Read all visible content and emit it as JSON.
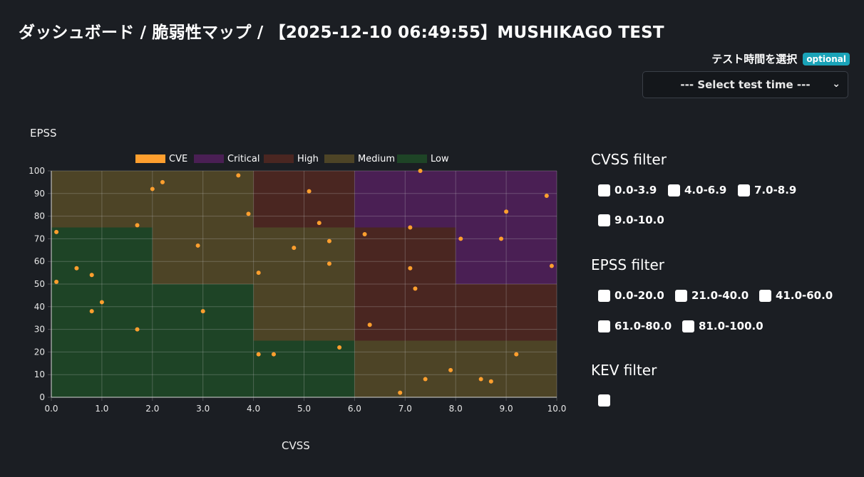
{
  "page": {
    "title": "ダッシュボード / 脆弱性マップ / 【2025-12-10 06:49:55】MUSHIKAGO TEST"
  },
  "test_time": {
    "label": "テスト時間を選択",
    "badge": "optional",
    "select_value": "--- Select test time ---"
  },
  "chart_data": {
    "type": "scatter",
    "ylabel": "EPSS",
    "xlabel": "CVSS",
    "xlim": [
      0,
      10
    ],
    "ylim": [
      0,
      100
    ],
    "x_ticks": [
      "0.0",
      "1.0",
      "2.0",
      "3.0",
      "4.0",
      "5.0",
      "6.0",
      "7.0",
      "8.0",
      "9.0",
      "10.0"
    ],
    "y_ticks": [
      "0",
      "10",
      "20",
      "30",
      "40",
      "50",
      "60",
      "70",
      "80",
      "90",
      "100"
    ],
    "legend": [
      {
        "name": "CVE",
        "color": "#ff9f2e"
      },
      {
        "name": "Critical",
        "color": "#4a1f54"
      },
      {
        "name": "High",
        "color": "#4a2621"
      },
      {
        "name": "Medium",
        "color": "#4d4426"
      },
      {
        "name": "Low",
        "color": "#1e4426"
      }
    ],
    "regions": [
      {
        "level": "Low",
        "x0": 0,
        "x1": 2,
        "y0": 0,
        "y1": 75,
        "color": "#1e4426"
      },
      {
        "level": "Low",
        "x0": 2,
        "x1": 4,
        "y0": 0,
        "y1": 50,
        "color": "#1e4426"
      },
      {
        "level": "Low",
        "x0": 4,
        "x1": 6,
        "y0": 0,
        "y1": 25,
        "color": "#1e4426"
      },
      {
        "level": "Medium",
        "x0": 0,
        "x1": 2,
        "y0": 75,
        "y1": 100,
        "color": "#4d4426"
      },
      {
        "level": "Medium",
        "x0": 2,
        "x1": 4,
        "y0": 50,
        "y1": 100,
        "color": "#4d4426"
      },
      {
        "level": "Medium",
        "x0": 4,
        "x1": 6,
        "y0": 25,
        "y1": 75,
        "color": "#4d4426"
      },
      {
        "level": "Medium",
        "x0": 6,
        "x1": 10,
        "y0": 0,
        "y1": 25,
        "color": "#4d4426"
      },
      {
        "level": "High",
        "x0": 4,
        "x1": 6,
        "y0": 75,
        "y1": 100,
        "color": "#4a2621"
      },
      {
        "level": "High",
        "x0": 6,
        "x1": 8,
        "y0": 25,
        "y1": 75,
        "color": "#4a2621"
      },
      {
        "level": "High",
        "x0": 8,
        "x1": 10,
        "y0": 25,
        "y1": 50,
        "color": "#4a2621"
      },
      {
        "level": "Critical",
        "x0": 6,
        "x1": 10,
        "y0": 75,
        "y1": 100,
        "color": "#4a1f54"
      },
      {
        "level": "Critical",
        "x0": 8,
        "x1": 10,
        "y0": 50,
        "y1": 75,
        "color": "#4a1f54"
      }
    ],
    "points": [
      {
        "x": 0.1,
        "y": 73
      },
      {
        "x": 0.1,
        "y": 51
      },
      {
        "x": 0.5,
        "y": 57
      },
      {
        "x": 0.8,
        "y": 54
      },
      {
        "x": 0.8,
        "y": 38
      },
      {
        "x": 1.0,
        "y": 42
      },
      {
        "x": 1.7,
        "y": 76
      },
      {
        "x": 1.7,
        "y": 30
      },
      {
        "x": 2.0,
        "y": 92
      },
      {
        "x": 2.2,
        "y": 95
      },
      {
        "x": 2.9,
        "y": 67
      },
      {
        "x": 3.0,
        "y": 38
      },
      {
        "x": 3.7,
        "y": 98
      },
      {
        "x": 3.9,
        "y": 81
      },
      {
        "x": 4.1,
        "y": 55
      },
      {
        "x": 4.1,
        "y": 19
      },
      {
        "x": 4.4,
        "y": 19
      },
      {
        "x": 4.8,
        "y": 66
      },
      {
        "x": 5.1,
        "y": 91
      },
      {
        "x": 5.3,
        "y": 77
      },
      {
        "x": 5.5,
        "y": 69
      },
      {
        "x": 5.5,
        "y": 59
      },
      {
        "x": 5.7,
        "y": 22
      },
      {
        "x": 6.2,
        "y": 72
      },
      {
        "x": 6.3,
        "y": 32
      },
      {
        "x": 6.9,
        "y": 2
      },
      {
        "x": 7.1,
        "y": 75
      },
      {
        "x": 7.1,
        "y": 57
      },
      {
        "x": 7.2,
        "y": 48
      },
      {
        "x": 7.3,
        "y": 100
      },
      {
        "x": 7.4,
        "y": 8
      },
      {
        "x": 7.9,
        "y": 12
      },
      {
        "x": 8.1,
        "y": 70
      },
      {
        "x": 8.5,
        "y": 8
      },
      {
        "x": 8.7,
        "y": 7
      },
      {
        "x": 8.9,
        "y": 70
      },
      {
        "x": 9.0,
        "y": 82
      },
      {
        "x": 9.2,
        "y": 19
      },
      {
        "x": 9.8,
        "y": 89
      },
      {
        "x": 9.9,
        "y": 58
      }
    ],
    "point_color": "#ff9f2e"
  },
  "filters": {
    "cvss": {
      "title": "CVSS filter",
      "options": [
        "0.0-3.9",
        "4.0-6.9",
        "7.0-8.9",
        "9.0-10.0"
      ]
    },
    "epss": {
      "title": "EPSS filter",
      "options": [
        "0.0-20.0",
        "21.0-40.0",
        "41.0-60.0",
        "61.0-80.0",
        "81.0-100.0"
      ]
    },
    "kev": {
      "title": "KEV filter"
    }
  }
}
